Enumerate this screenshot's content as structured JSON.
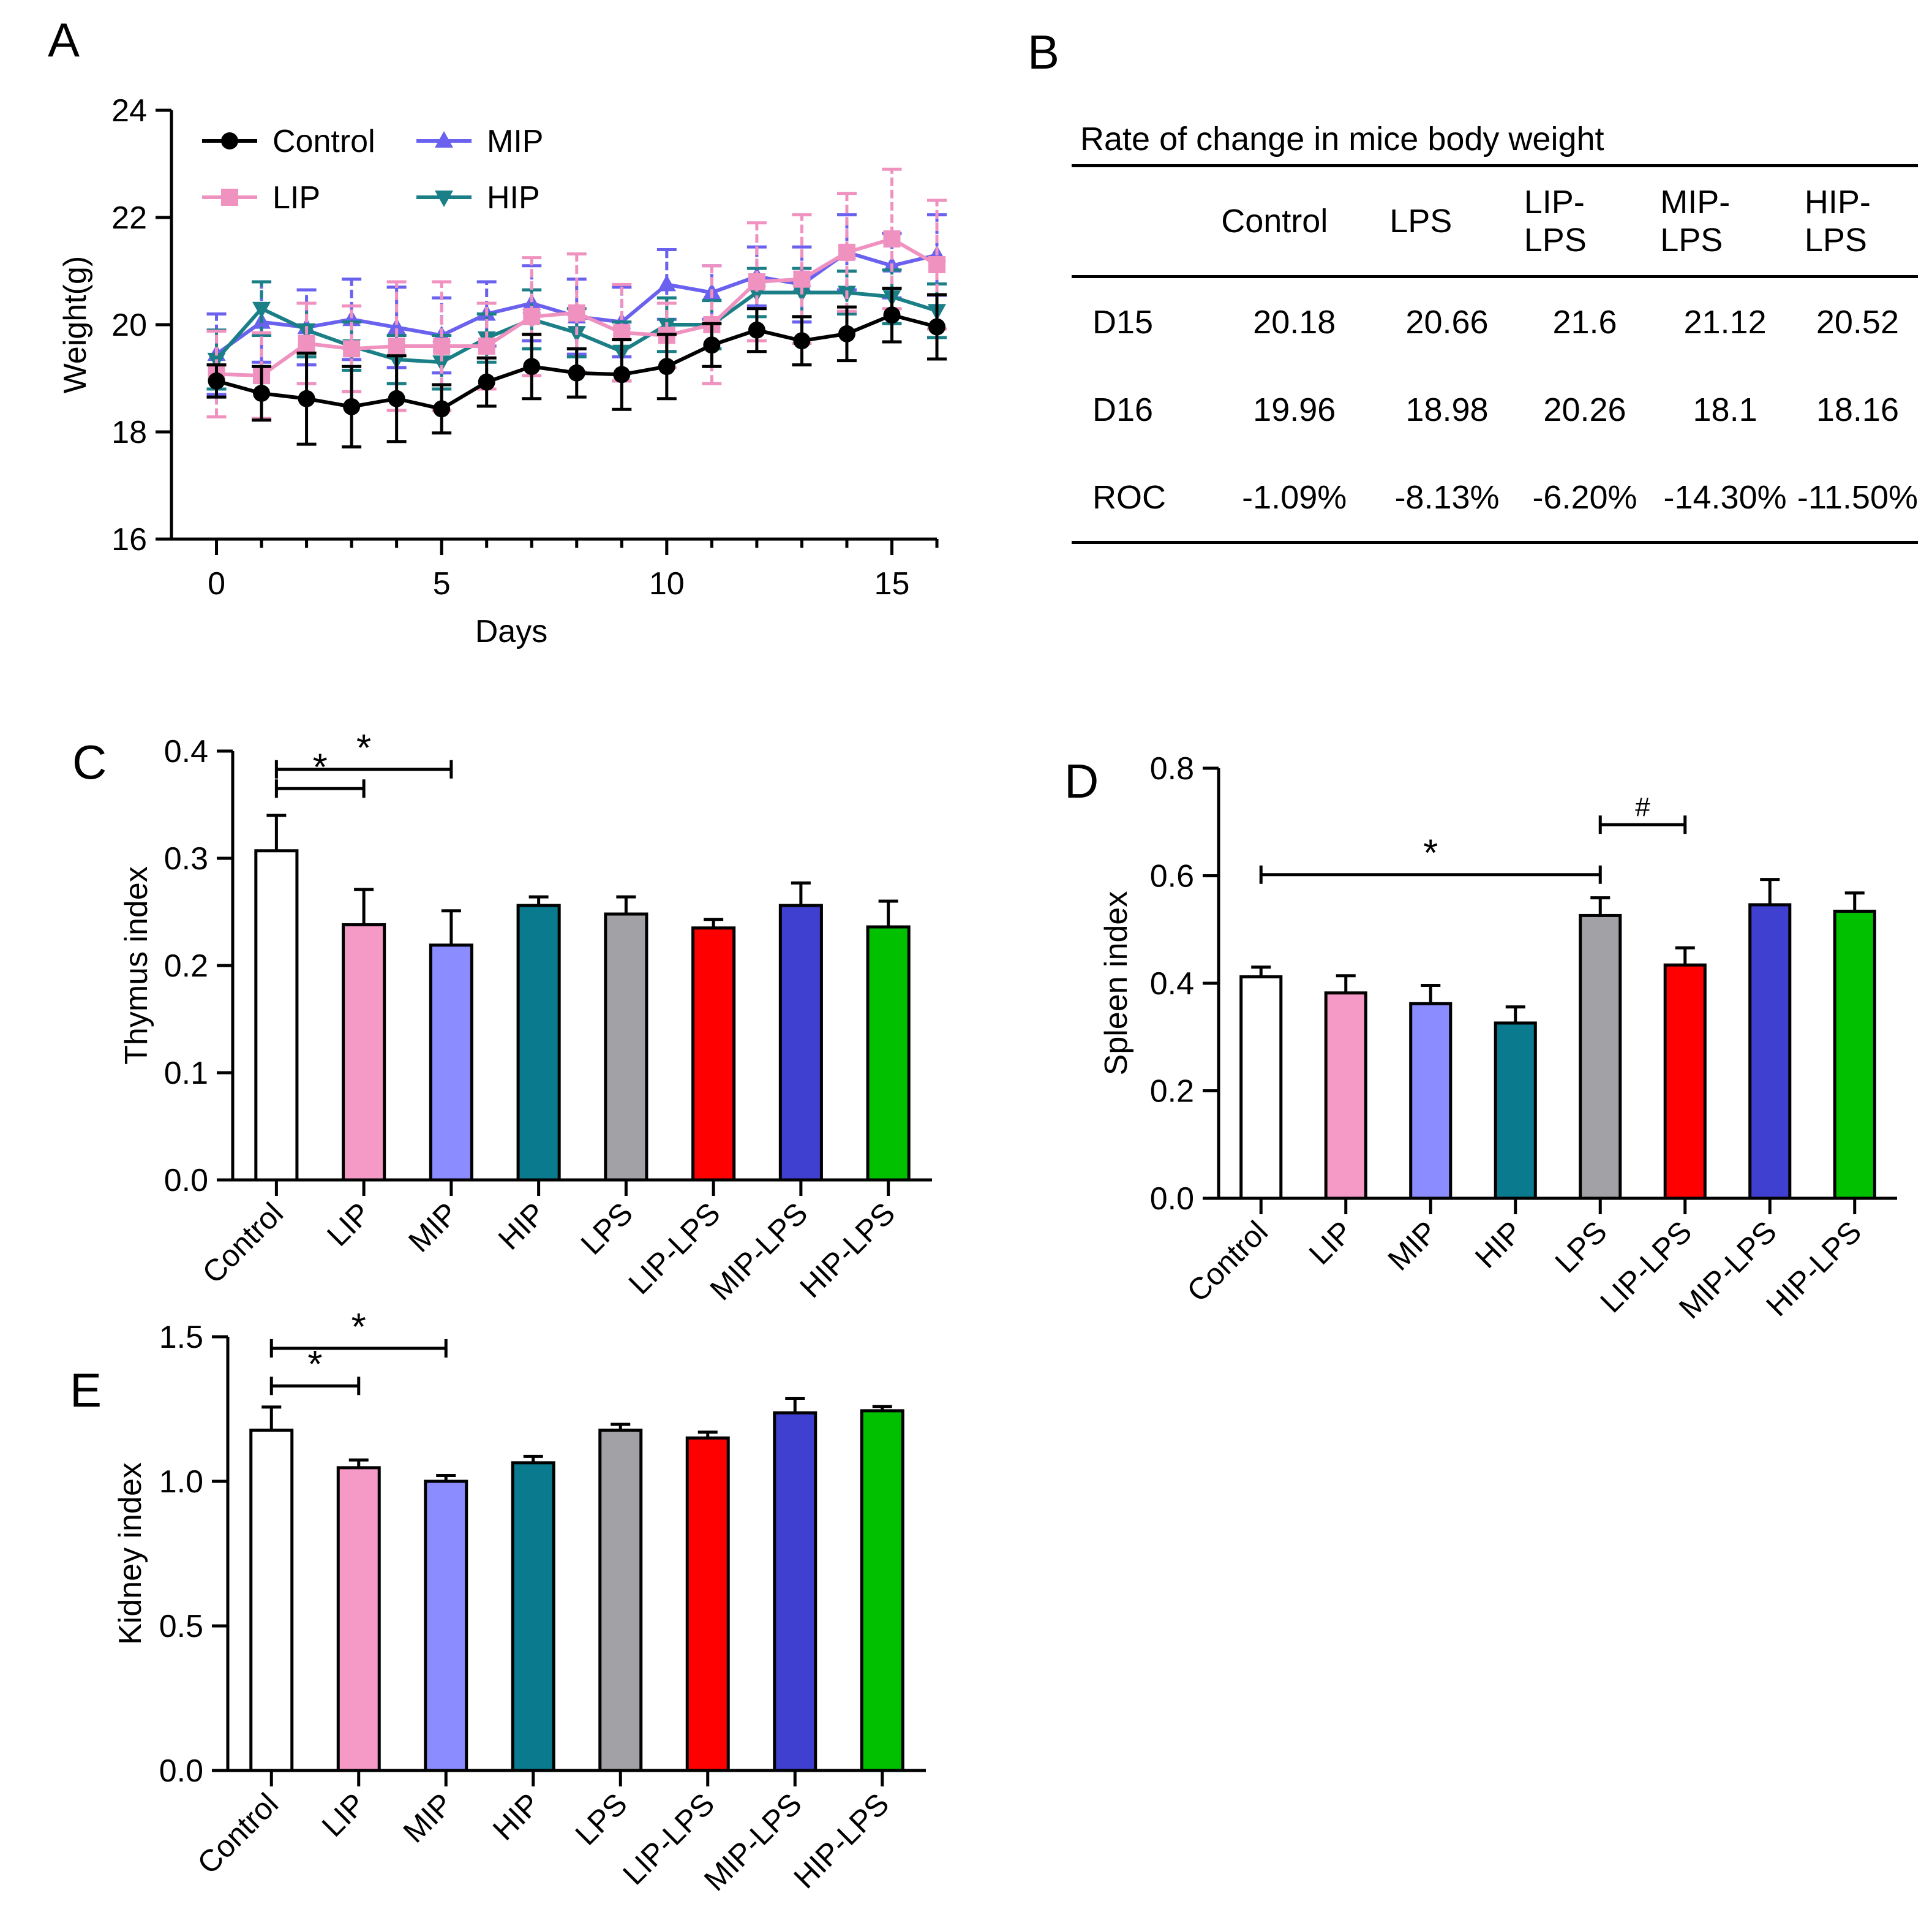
{
  "panels": {
    "a": "A",
    "b": "B",
    "c": "C",
    "d": "D",
    "e": "E"
  },
  "colors": {
    "Control": "#ffffff",
    "LIP": "#f59ac7",
    "MIP": "#8a8cff",
    "HIP": "#0a7a8e",
    "LPS": "#a1a1a6",
    "LIP-LPS": "#ff0000",
    "MIP-LPS": "#4040d0",
    "HIP-LPS": "#00c000",
    "line_Control": "#000000",
    "line_LIP": "#f092c0",
    "line_MIP": "#6a62ee",
    "line_HIP": "#1a7f86"
  },
  "table": {
    "title": "Rate of change in mice body weight",
    "headers": [
      "",
      "Control",
      "LPS",
      "LIP-\nLPS",
      "MIP-\nLPS",
      "HIP-\nLPS"
    ],
    "rows": [
      {
        "label": "D15",
        "cells": [
          "20.18",
          "20.66",
          "21.6",
          "21.12",
          "20.52"
        ]
      },
      {
        "label": "D16",
        "cells": [
          "19.96",
          "18.98",
          "20.26",
          "18.1",
          "18.16"
        ]
      },
      {
        "label": "ROC",
        "cells": [
          "-1.09%",
          "-8.13%",
          "-6.20%",
          "-14.30%",
          "-11.50%"
        ]
      }
    ]
  },
  "chart_data": [
    {
      "panel": "A",
      "type": "line",
      "xlabel": "Days",
      "ylabel": "Weight(g)",
      "xlim": [
        -1,
        16
      ],
      "ylim": [
        16,
        24
      ],
      "xticks": [
        0,
        5,
        10,
        15
      ],
      "yticks": [
        16,
        18,
        20,
        22,
        24
      ],
      "legend_position": "top-left",
      "x": [
        0,
        1,
        2,
        3,
        4,
        5,
        6,
        7,
        8,
        9,
        10,
        11,
        12,
        13,
        14,
        15,
        16
      ],
      "series": [
        {
          "name": "Control",
          "marker": "circle",
          "values": [
            18.95,
            18.72,
            18.62,
            18.47,
            18.62,
            18.43,
            18.93,
            19.22,
            19.1,
            19.07,
            19.22,
            19.62,
            19.9,
            19.7,
            19.83,
            20.18,
            19.96
          ],
          "error": [
            0.3,
            0.5,
            0.85,
            0.75,
            0.8,
            0.45,
            0.45,
            0.6,
            0.45,
            0.65,
            0.6,
            0.4,
            0.4,
            0.45,
            0.5,
            0.5,
            0.6
          ]
        },
        {
          "name": "LIP",
          "marker": "square",
          "values": [
            19.08,
            19.05,
            19.65,
            19.55,
            19.6,
            19.6,
            19.6,
            20.15,
            20.22,
            19.85,
            19.8,
            20.0,
            20.8,
            20.85,
            21.35,
            21.6,
            21.12
          ],
          "error": [
            0.8,
            0.8,
            0.75,
            0.8,
            1.2,
            1.2,
            0.8,
            1.1,
            1.1,
            0.9,
            0.6,
            1.1,
            1.1,
            1.2,
            1.1,
            1.3,
            1.2
          ]
        },
        {
          "name": "MIP",
          "marker": "triangle-up",
          "values": [
            19.45,
            20.05,
            19.95,
            20.1,
            19.95,
            19.8,
            20.2,
            20.4,
            20.15,
            20.05,
            20.75,
            20.6,
            20.9,
            20.75,
            21.35,
            21.1,
            21.3
          ],
          "error": [
            0.75,
            0.75,
            0.7,
            0.75,
            0.75,
            0.7,
            0.6,
            0.7,
            0.7,
            0.65,
            0.65,
            0.5,
            0.55,
            0.7,
            0.7,
            0.6,
            0.75
          ]
        },
        {
          "name": "HIP",
          "marker": "triangle-down",
          "values": [
            19.35,
            20.3,
            19.9,
            19.6,
            19.35,
            19.3,
            19.75,
            20.1,
            19.85,
            19.5,
            20.0,
            20.0,
            20.6,
            20.6,
            20.6,
            20.52,
            20.26
          ],
          "error": [
            0.55,
            0.5,
            0.5,
            0.45,
            0.45,
            0.5,
            0.45,
            0.55,
            0.45,
            0.55,
            0.5,
            0.45,
            0.45,
            0.45,
            0.4,
            0.5,
            0.5
          ]
        }
      ]
    },
    {
      "panel": "C",
      "type": "bar",
      "ylabel": "Thymus index",
      "ylim": [
        0,
        0.4
      ],
      "yticks": [
        "0.0",
        "0.1",
        "0.2",
        "0.3",
        "0.4"
      ],
      "categories": [
        "Control",
        "LIP",
        "MIP",
        "HIP",
        "LPS",
        "LIP-LPS",
        "MIP-LPS",
        "HIP-LPS"
      ],
      "values": [
        0.307,
        0.238,
        0.219,
        0.256,
        0.248,
        0.235,
        0.256,
        0.236
      ],
      "error": [
        0.033,
        0.033,
        0.032,
        0.008,
        0.016,
        0.008,
        0.021,
        0.024
      ],
      "significance": [
        {
          "from": 0,
          "to": 2,
          "level": 0.383,
          "label": "*"
        },
        {
          "from": 0,
          "to": 1,
          "level": 0.365,
          "label": "*"
        }
      ]
    },
    {
      "panel": "D",
      "type": "bar",
      "ylabel": "Spleen index",
      "ylim": [
        0,
        0.8
      ],
      "yticks": [
        "0.0",
        "0.2",
        "0.4",
        "0.6",
        "0.8"
      ],
      "categories": [
        "Control",
        "LIP",
        "MIP",
        "HIP",
        "LPS",
        "LIP-LPS",
        "MIP-LPS",
        "HIP-LPS"
      ],
      "values": [
        0.412,
        0.382,
        0.362,
        0.326,
        0.526,
        0.434,
        0.546,
        0.534
      ],
      "error": [
        0.018,
        0.032,
        0.034,
        0.03,
        0.033,
        0.032,
        0.047,
        0.034
      ],
      "significance": [
        {
          "from": 0,
          "to": 4,
          "level": 0.602,
          "label": "*"
        },
        {
          "from": 4,
          "to": 5,
          "level": 0.695,
          "label": "#"
        }
      ]
    },
    {
      "panel": "E",
      "type": "bar",
      "ylabel": "Kidney index",
      "ylim": [
        0,
        1.5
      ],
      "yticks": [
        "0.0",
        "0.5",
        "1.0",
        "1.5"
      ],
      "categories": [
        "Control",
        "LIP",
        "MIP",
        "HIP",
        "LPS",
        "LIP-LPS",
        "MIP-LPS",
        "HIP-LPS"
      ],
      "values": [
        1.177,
        1.047,
        1.0,
        1.064,
        1.177,
        1.15,
        1.237,
        1.244
      ],
      "error": [
        0.08,
        0.027,
        0.02,
        0.022,
        0.02,
        0.02,
        0.05,
        0.015
      ],
      "significance": [
        {
          "from": 0,
          "to": 2,
          "level": 1.46,
          "label": "*"
        },
        {
          "from": 0,
          "to": 1,
          "level": 1.33,
          "label": "*"
        }
      ]
    }
  ]
}
